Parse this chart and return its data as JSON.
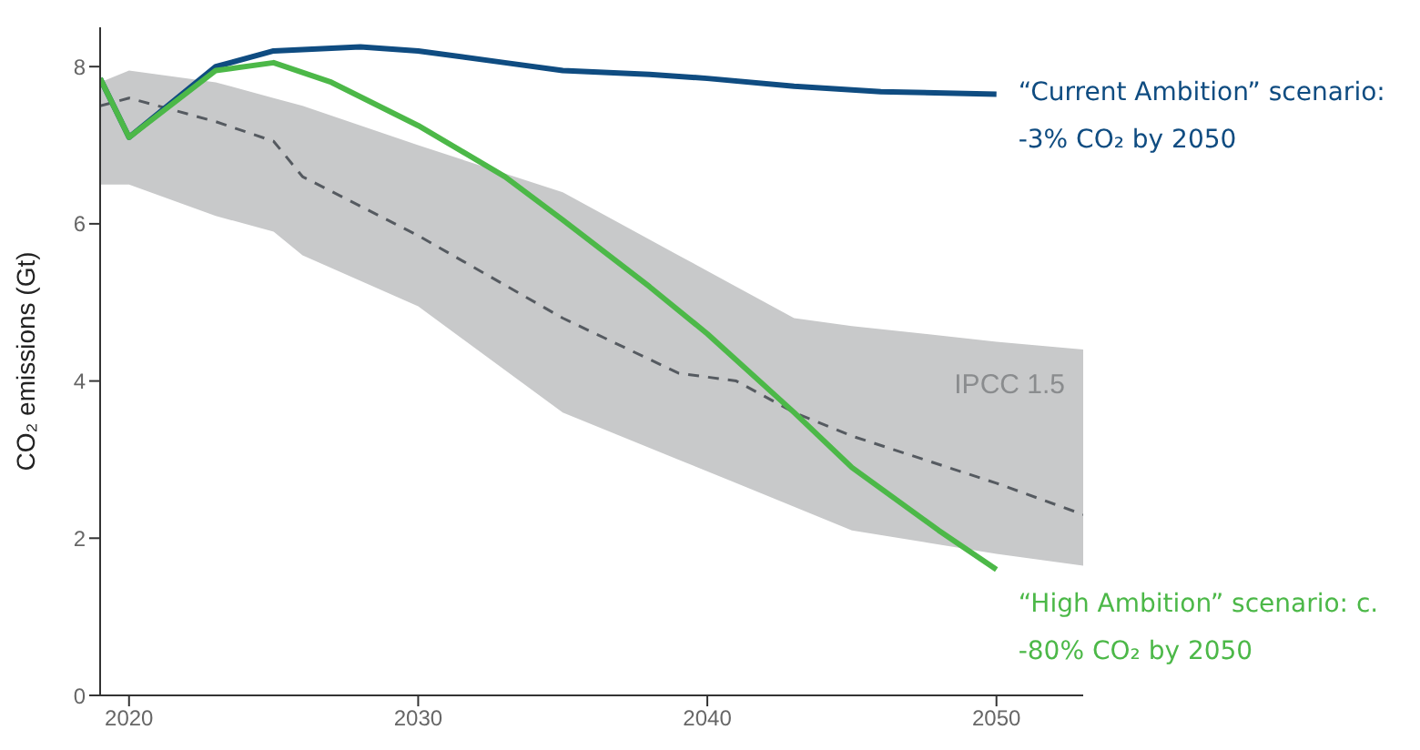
{
  "chart_data": {
    "type": "line",
    "ylabel": "CO₂ emissions (Gt)",
    "xlim": [
      2019,
      2053
    ],
    "xticks": [
      2020,
      2030,
      2040,
      2050
    ],
    "ylim": [
      0,
      8.5
    ],
    "yticks": [
      0,
      2,
      4,
      6,
      8
    ],
    "series": [
      {
        "color": "#555a60",
        "line_style": "dashed",
        "x": [
          2019,
          2020,
          2023,
          2025,
          2026,
          2030,
          2035,
          2039,
          2041,
          2043,
          2045,
          2050,
          2053
        ],
        "values": [
          7.5,
          7.6,
          7.3,
          7.05,
          6.6,
          5.85,
          4.8,
          4.1,
          4.0,
          3.6,
          3.3,
          2.7,
          2.3
        ],
        "lower": [
          6.5,
          6.5,
          6.1,
          5.9,
          5.6,
          4.95,
          3.6,
          3.0,
          2.7,
          2.4,
          2.1,
          1.8,
          1.65
        ],
        "upper": [
          7.8,
          7.95,
          7.8,
          7.6,
          7.5,
          7.0,
          6.4,
          5.6,
          5.2,
          4.8,
          4.7,
          4.5,
          4.4
        ]
      },
      {
        "color": "#0f4c81",
        "line_style": "solid",
        "x": [
          2019,
          2020,
          2023,
          2025,
          2028,
          2030,
          2033,
          2035,
          2038,
          2040,
          2043,
          2046,
          2050
        ],
        "values": [
          7.85,
          7.1,
          8.0,
          8.2,
          8.25,
          8.2,
          8.05,
          7.95,
          7.9,
          7.85,
          7.75,
          7.68,
          7.65
        ]
      },
      {
        "color": "#4cb848",
        "line_style": "solid",
        "x": [
          2019,
          2020,
          2023,
          2025,
          2027,
          2030,
          2033,
          2035,
          2038,
          2040,
          2043,
          2045,
          2048,
          2050
        ],
        "values": [
          7.85,
          7.1,
          7.95,
          8.05,
          7.8,
          7.25,
          6.6,
          6.05,
          5.2,
          4.6,
          3.6,
          2.9,
          2.1,
          1.6
        ]
      }
    ],
    "annotations": [
      "IPCC 1.5",
      "“Current Ambition” scenario: -3% CO₂ by 2050",
      "“High Ambition” scenario: c. -80% CO₂ by 2050"
    ]
  }
}
